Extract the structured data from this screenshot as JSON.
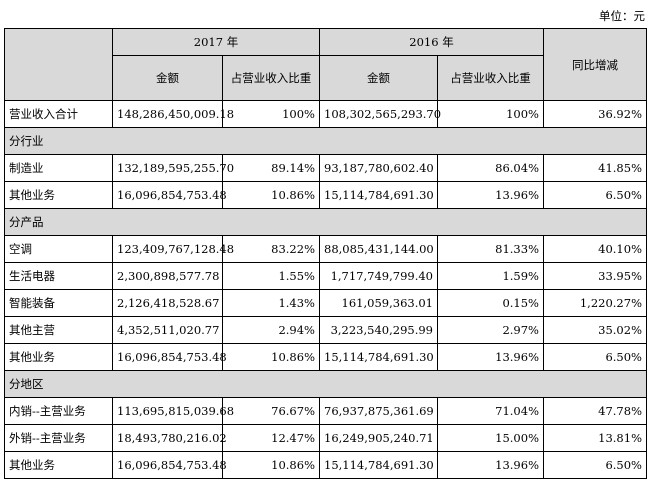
{
  "unit_label": "单位：元",
  "header": {
    "year_2017": "2017 年",
    "year_2016": "2016 年",
    "amount": "金额",
    "ratio_2017": "占营业收入比重",
    "ratio_2016": "占营业收入比重",
    "yoy": "同比增减"
  },
  "total": {
    "label": "营业收入合计",
    "amt2017": "148,286,450,009.18",
    "pct2017": "100%",
    "amt2016": "108,302,565,293.70",
    "pct2016": "100%",
    "yoy": "36.92%"
  },
  "sections": [
    {
      "title": "分行业",
      "rows": [
        {
          "label": "制造业",
          "amt2017": "132,189,595,255.70",
          "pct2017": "89.14%",
          "amt2016": "93,187,780,602.40",
          "pct2016": "86.04%",
          "yoy": "41.85%"
        },
        {
          "label": "其他业务",
          "amt2017": "16,096,854,753.48",
          "pct2017": "10.86%",
          "amt2016": "15,114,784,691.30",
          "pct2016": "13.96%",
          "yoy": "6.50%"
        }
      ]
    },
    {
      "title": "分产品",
      "rows": [
        {
          "label": "空调",
          "amt2017": "123,409,767,128.48",
          "pct2017": "83.22%",
          "amt2016": "88,085,431,144.00",
          "pct2016": "81.33%",
          "yoy": "40.10%"
        },
        {
          "label": "生活电器",
          "amt2017": "2,300,898,577.78",
          "pct2017": "1.55%",
          "amt2016": "1,717,749,799.40",
          "pct2016": "1.59%",
          "yoy": "33.95%"
        },
        {
          "label": "智能装备",
          "amt2017": "2,126,418,528.67",
          "pct2017": "1.43%",
          "amt2016": "161,059,363.01",
          "pct2016": "0.15%",
          "yoy": "1,220.27%"
        },
        {
          "label": "其他主营",
          "amt2017": "4,352,511,020.77",
          "pct2017": "2.94%",
          "amt2016": "3,223,540,295.99",
          "pct2016": "2.97%",
          "yoy": "35.02%"
        },
        {
          "label": "其他业务",
          "amt2017": "16,096,854,753.48",
          "pct2017": "10.86%",
          "amt2016": "15,114,784,691.30",
          "pct2016": "13.96%",
          "yoy": "6.50%"
        }
      ]
    },
    {
      "title": "分地区",
      "rows": [
        {
          "label": "内销--主营业务",
          "amt2017": "113,695,815,039.68",
          "pct2017": "76.67%",
          "amt2016": "76,937,875,361.69",
          "pct2016": "71.04%",
          "yoy": "47.78%"
        },
        {
          "label": "外销--主营业务",
          "amt2017": "18,493,780,216.02",
          "pct2017": "12.47%",
          "amt2016": "16,249,905,240.71",
          "pct2016": "15.00%",
          "yoy": "13.81%"
        },
        {
          "label": "其他业务",
          "amt2017": "16,096,854,753.48",
          "pct2017": "10.86%",
          "amt2016": "15,114,784,691.30",
          "pct2016": "13.96%",
          "yoy": "6.50%"
        }
      ]
    }
  ]
}
